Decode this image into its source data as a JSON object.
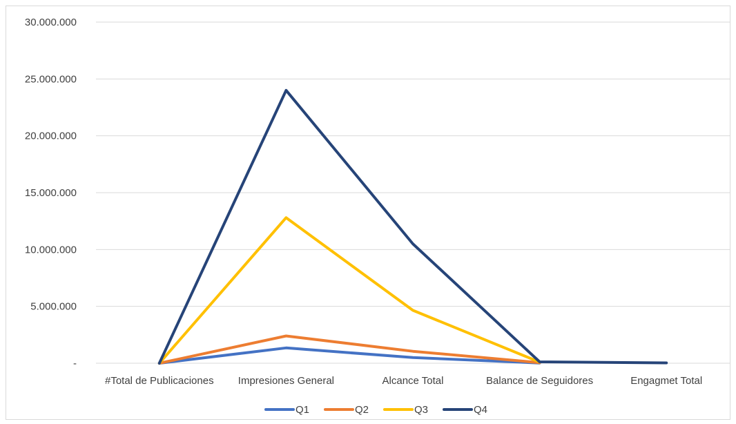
{
  "chart_data": {
    "type": "line",
    "title": "",
    "xlabel": "",
    "ylabel": "",
    "categories": [
      "#Total de Publicaciones",
      "Impresiones General",
      "Alcance Total",
      "Balance de Seguidores",
      "Engagmet Total"
    ],
    "ylim": [
      0,
      30000000
    ],
    "yticks": [
      0,
      5000000,
      10000000,
      15000000,
      20000000,
      25000000,
      30000000
    ],
    "ytick_labels": [
      "-",
      "5.000.000",
      "10.000.000",
      "15.000.000",
      "20.000.000",
      "25.000.000",
      "30.000.000"
    ],
    "grid": true,
    "legend_position": "bottom",
    "series": [
      {
        "name": "Q1",
        "color": "#4472C4",
        "values": [
          0,
          1350000,
          500000,
          20000,
          null
        ]
      },
      {
        "name": "Q2",
        "color": "#ED7D31",
        "values": [
          0,
          2400000,
          1050000,
          50000,
          null
        ]
      },
      {
        "name": "Q3",
        "color": "#FFC000",
        "values": [
          0,
          12800000,
          4650000,
          100000,
          null
        ]
      },
      {
        "name": "Q4",
        "color": "#264478",
        "values": [
          0,
          24000000,
          10500000,
          120000,
          30000
        ]
      }
    ]
  }
}
